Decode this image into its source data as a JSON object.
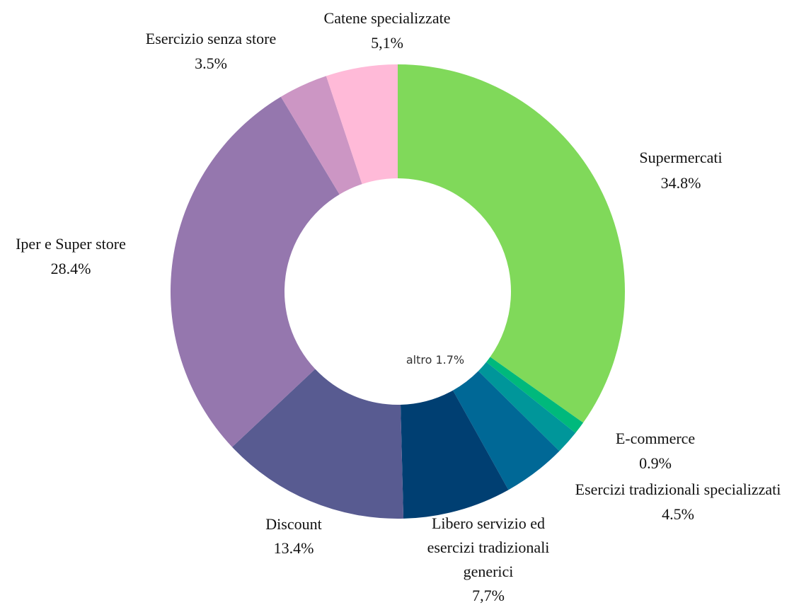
{
  "chart_data": {
    "type": "pie",
    "donut": true,
    "categories": [
      "Supermercati",
      "E-commerce",
      "altro",
      "Esercizi tradizionali specializzati",
      "Libero servizio ed\nesercizi tradizionali\ngenerici",
      "Discount",
      "Iper e Super store",
      "Esercizio senza store",
      "Catene specializzate"
    ],
    "values": [
      34.8,
      0.9,
      1.7,
      4.5,
      7.7,
      13.4,
      28.4,
      3.5,
      5.1
    ],
    "value_labels": [
      "34.8%",
      "0.9%",
      "1.7%",
      "4.5%",
      "7,7%",
      "13.4%",
      "28.4%",
      "3.5%",
      "5,1%"
    ],
    "colors": [
      "#80d95a",
      "#00b97c",
      "#00969a",
      "#006896",
      "#003f72",
      "#585b91",
      "#9577ae",
      "#cc96c4",
      "#ffbad8"
    ]
  }
}
